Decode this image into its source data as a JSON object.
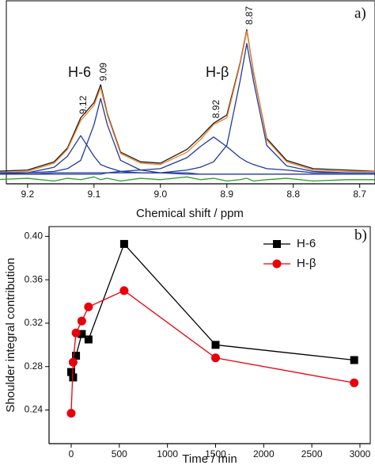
{
  "chart_data": [
    {
      "type": "line",
      "panel_label": "a)",
      "xlabel": "Chemical shift / ppm",
      "annotations": [
        "H-6",
        "H-β"
      ],
      "peak_labels": [
        9.12,
        9.09,
        8.92,
        8.87
      ],
      "peak_label_color": "#1f3b9b",
      "xlim": [
        9.232,
        8.677
      ],
      "ylim": [
        -0.07,
        1.26
      ],
      "xticks": [
        9.2,
        9.1,
        {
          "value": 9,
          "label": "9.0"
        },
        8.9,
        8.8,
        8.7
      ],
      "x": [
        9.25,
        9.2,
        9.16,
        9.14,
        9.12,
        9.1,
        9.09,
        9.08,
        9.06,
        9.03,
        9.0,
        8.96,
        8.94,
        8.92,
        8.9,
        8.88,
        8.87,
        8.86,
        8.84,
        8.81,
        8.77,
        8.72,
        8.67
      ],
      "series": [
        {
          "color": "#1a1a1a",
          "values": [
            0.02,
            0.03,
            0.09,
            0.19,
            0.41,
            0.52,
            0.65,
            0.44,
            0.16,
            0.09,
            0.08,
            0.18,
            0.27,
            0.37,
            0.43,
            0.81,
            1.05,
            0.74,
            0.26,
            0.1,
            0.04,
            0.03,
            0.02
          ]
        },
        {
          "color": "#f07f2a",
          "values": [
            0.01,
            0.02,
            0.08,
            0.18,
            0.39,
            0.5,
            0.63,
            0.43,
            0.15,
            0.08,
            0.07,
            0.16,
            0.25,
            0.36,
            0.41,
            0.8,
            1.04,
            0.75,
            0.25,
            0.09,
            0.03,
            0.02,
            0.02
          ]
        },
        {
          "color": "#2e9b2e",
          "values": [
            -0.04,
            -0.03,
            -0.05,
            -0.03,
            -0.04,
            -0.02,
            -0.04,
            -0.03,
            -0.05,
            -0.03,
            -0.04,
            -0.02,
            -0.04,
            -0.03,
            -0.05,
            -0.04,
            -0.03,
            -0.05,
            -0.04,
            -0.03,
            -0.05,
            -0.04,
            -0.04
          ]
        },
        {
          "color": "#1f3b9b",
          "values": [
            0.01,
            0.01,
            0.05,
            0.13,
            0.28,
            0.13,
            0.07,
            0.05,
            0.02,
            0.01,
            0.01,
            0,
            0,
            0,
            0,
            0,
            0,
            0,
            0,
            0,
            0,
            0,
            0
          ]
        },
        {
          "color": "#1f3b9b",
          "values": [
            0,
            0.01,
            0.02,
            0.04,
            0.1,
            0.36,
            0.55,
            0.36,
            0.1,
            0.03,
            0.01,
            0.01,
            0,
            0,
            0,
            0,
            0,
            0,
            0,
            0,
            0,
            0,
            0
          ]
        },
        {
          "color": "#1f3b9b",
          "values": [
            0,
            0,
            0.01,
            0.01,
            0.01,
            0.01,
            0.01,
            0.01,
            0.02,
            0.03,
            0.04,
            0.12,
            0.2,
            0.27,
            0.2,
            0.12,
            0.09,
            0.07,
            0.04,
            0.03,
            0.01,
            0.01,
            0.01
          ]
        },
        {
          "color": "#1f3b9b",
          "values": [
            0,
            0,
            0,
            0,
            0,
            0,
            0,
            0.01,
            0.01,
            0.01,
            0.01,
            0.03,
            0.05,
            0.09,
            0.21,
            0.68,
            0.95,
            0.68,
            0.21,
            0.06,
            0.02,
            0.01,
            0.01
          ]
        }
      ]
    },
    {
      "type": "line",
      "panel_label": "b)",
      "xlabel": "Time / min",
      "ylabel": "Shoulder integral contribution",
      "legend": "upper right",
      "xlim": [
        -230,
        3107
      ],
      "ylim": [
        0.209,
        0.409
      ],
      "xticks": [
        0,
        500,
        1000,
        1500,
        2000,
        2500,
        3000
      ],
      "yticks": [
        0.24,
        0.28,
        0.32,
        0.36,
        {
          "value": 0.4,
          "label": "0.40"
        }
      ],
      "x": [
        0,
        20,
        50,
        110,
        180,
        550,
        1500,
        2940
      ],
      "series": [
        {
          "name": "H-6",
          "color": "#000000",
          "marker": "square",
          "values": [
            0.275,
            0.27,
            0.29,
            0.31,
            0.305,
            0.393,
            0.3,
            0.286
          ]
        },
        {
          "name": "H-β",
          "color": "#e8000b",
          "marker": "circle",
          "values": [
            0.237,
            0.284,
            0.311,
            0.322,
            0.335,
            0.35,
            0.288,
            0.265
          ]
        }
      ]
    }
  ]
}
